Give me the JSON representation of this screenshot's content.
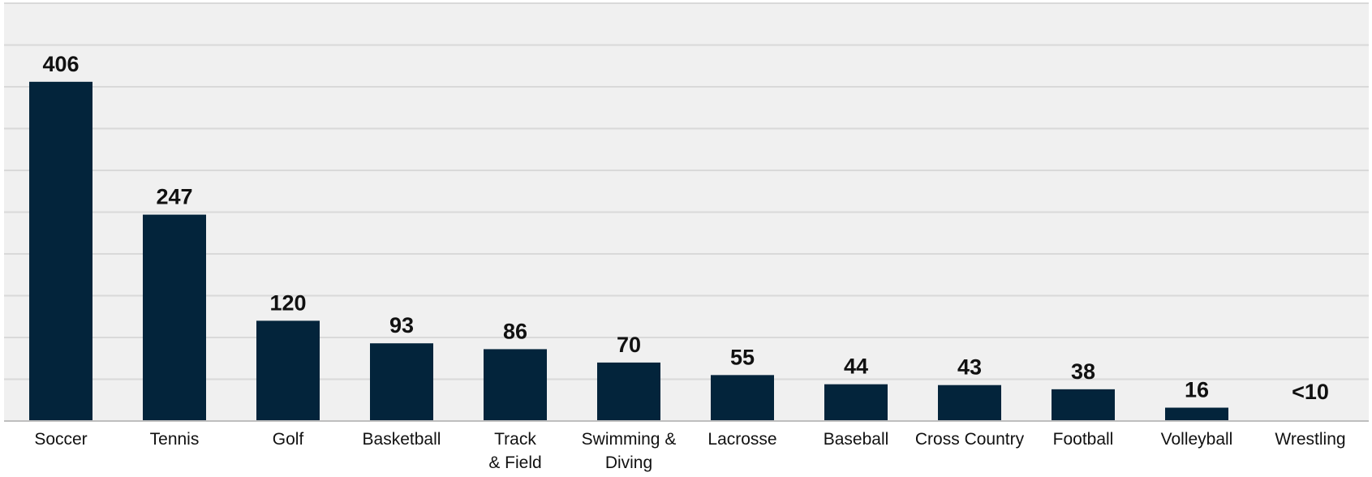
{
  "chart_data": {
    "type": "bar",
    "categories": [
      [
        "Soccer"
      ],
      [
        "Tennis"
      ],
      [
        "Golf"
      ],
      [
        "Basketball"
      ],
      [
        "Track",
        "& Field"
      ],
      [
        "Swimming &",
        "Diving"
      ],
      [
        "Lacrosse"
      ],
      [
        "Baseball"
      ],
      [
        "Cross Country"
      ],
      [
        "Football"
      ],
      [
        "Volleyball"
      ],
      [
        "Wrestling"
      ]
    ],
    "values": [
      406,
      247,
      120,
      93,
      86,
      70,
      55,
      44,
      43,
      38,
      16,
      null
    ],
    "value_labels": [
      "406",
      "247",
      "120",
      "93",
      "86",
      "70",
      "55",
      "44",
      "43",
      "38",
      "16",
      "<10"
    ],
    "ylim": [
      0,
      500
    ],
    "grid": true,
    "title": "",
    "xlabel": "",
    "ylabel": "",
    "colors": {
      "bar": "#03243b",
      "plot_background": "#f0f0f0",
      "grid": "#d9d9d9",
      "axis": "#bfbfbf",
      "text": "#111111"
    }
  }
}
